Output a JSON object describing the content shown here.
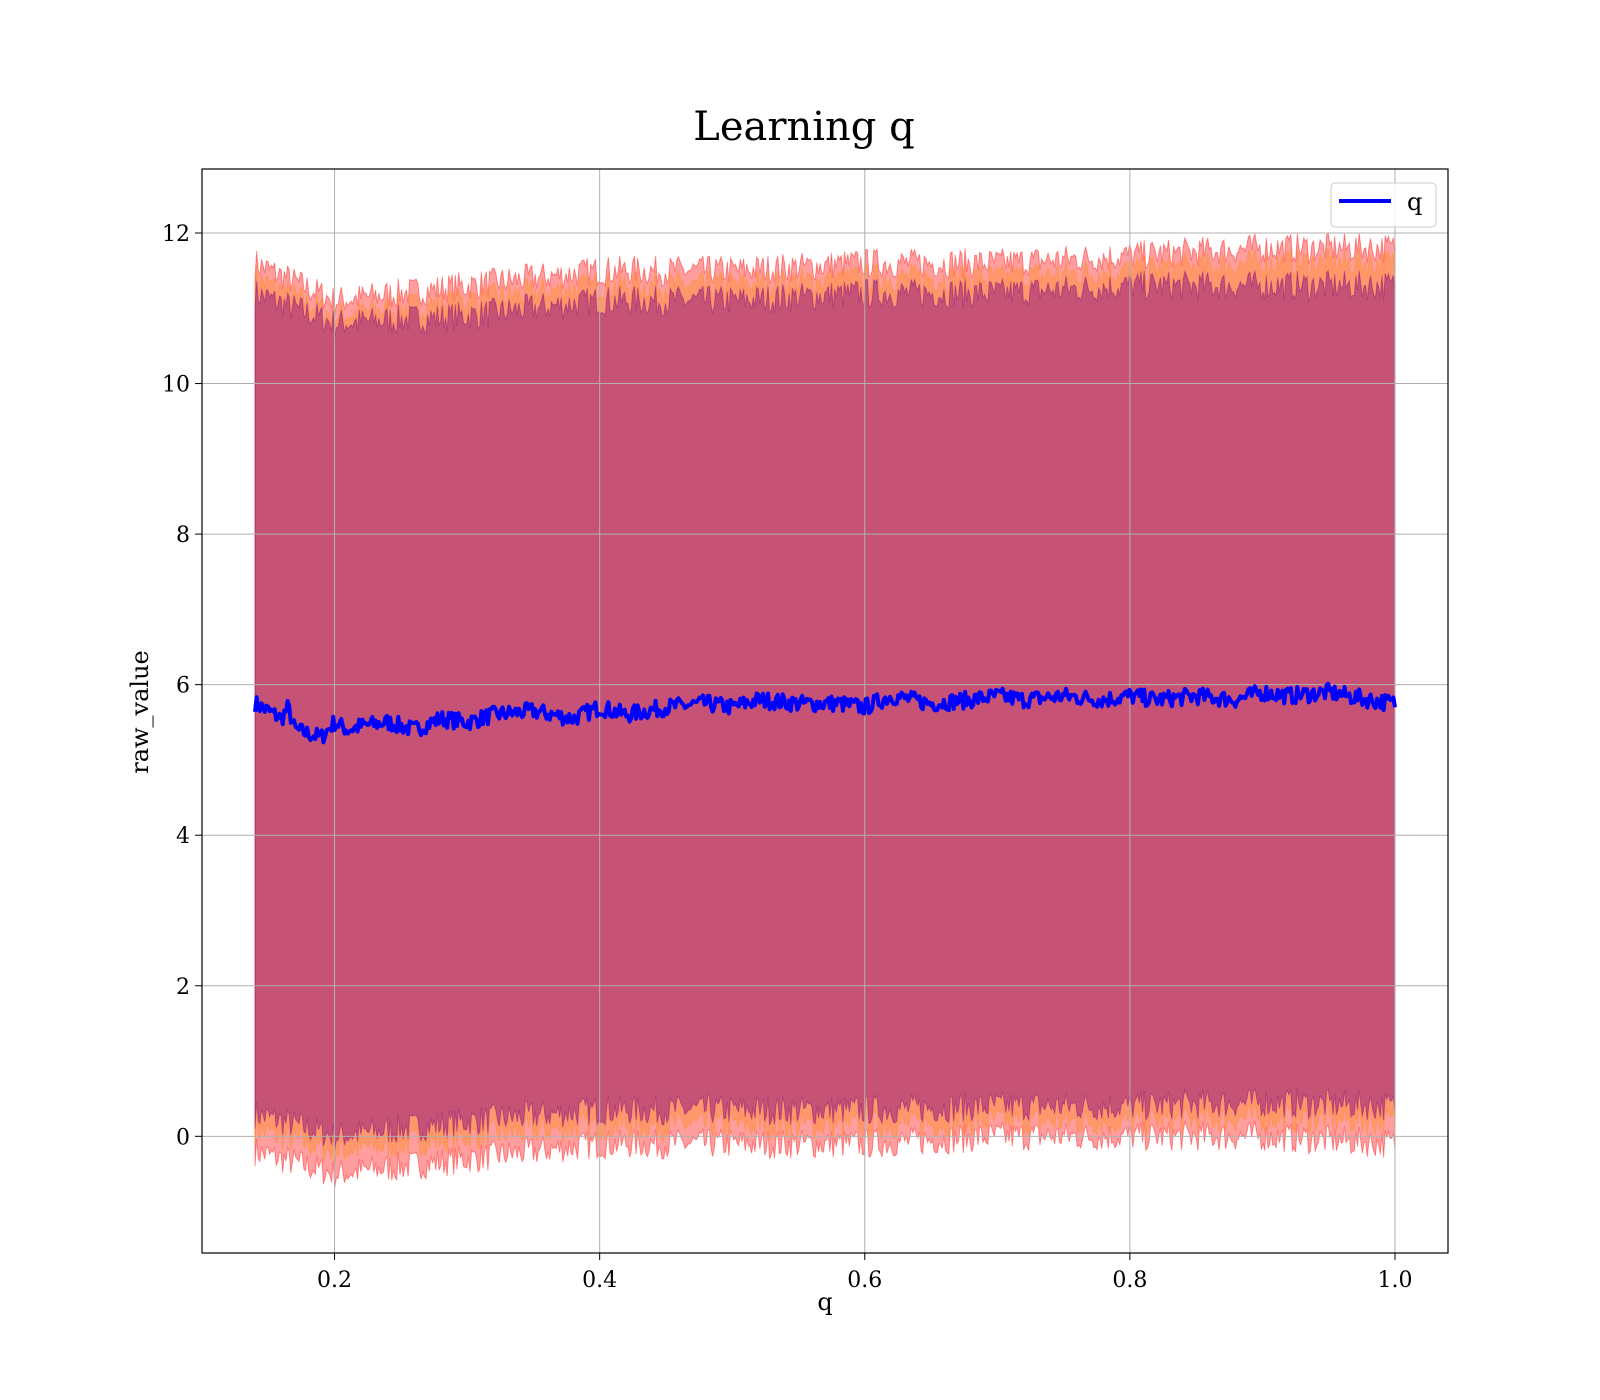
{
  "chart_data": {
    "type": "line",
    "title": "Learning q",
    "xlabel": "q",
    "ylabel": "raw_value",
    "xlim": [
      0.1,
      1.04
    ],
    "ylim": [
      -1.55,
      12.85
    ],
    "x_ticks": [
      0.2,
      0.4,
      0.6,
      0.8,
      1.0
    ],
    "x_tick_labels": [
      "0.2",
      "0.4",
      "0.6",
      "0.8",
      "1.0"
    ],
    "y_ticks": [
      0,
      2,
      4,
      6,
      8,
      10,
      12
    ],
    "y_tick_labels": [
      "0",
      "2",
      "4",
      "6",
      "8",
      "10",
      "12"
    ],
    "grid": true,
    "legend": {
      "position": "top-right",
      "entries": [
        "q"
      ]
    },
    "colors": {
      "line": "#0000ff",
      "band_outer": "#ff0000",
      "band_middle": "#ff8c1a",
      "band_inner": "#800080"
    },
    "x_range": [
      0.14,
      1.0
    ],
    "series": [
      {
        "name": "q",
        "style": "line",
        "x": [
          0.14,
          0.15,
          0.16,
          0.165,
          0.17,
          0.18,
          0.19,
          0.2,
          0.21,
          0.22,
          0.24,
          0.26,
          0.28,
          0.3,
          0.32,
          0.35,
          0.38,
          0.4,
          0.42,
          0.45,
          0.48,
          0.5,
          0.52,
          0.55,
          0.58,
          0.6,
          0.62,
          0.65,
          0.68,
          0.7,
          0.72,
          0.75,
          0.78,
          0.8,
          0.82,
          0.85,
          0.88,
          0.9,
          0.92,
          0.95,
          0.98,
          1.0
        ],
        "y": [
          5.75,
          5.65,
          5.55,
          5.7,
          5.4,
          5.35,
          5.3,
          5.5,
          5.4,
          5.45,
          5.5,
          5.4,
          5.55,
          5.5,
          5.6,
          5.65,
          5.55,
          5.7,
          5.6,
          5.7,
          5.75,
          5.7,
          5.8,
          5.75,
          5.75,
          5.7,
          5.85,
          5.75,
          5.8,
          5.85,
          5.8,
          5.85,
          5.8,
          5.85,
          5.8,
          5.85,
          5.8,
          5.9,
          5.85,
          5.9,
          5.8,
          5.75
        ]
      },
      {
        "name": "",
        "style": "band",
        "x": [
          0.14,
          0.2,
          0.3,
          0.4,
          0.5,
          0.6,
          0.7,
          0.8,
          0.9,
          1.0
        ],
        "upper": [
          11.6,
          11.1,
          11.3,
          11.5,
          11.5,
          11.6,
          11.6,
          11.7,
          11.8,
          11.8
        ],
        "lower": [
          -0.2,
          -0.5,
          -0.3,
          -0.1,
          -0.1,
          -0.1,
          0.0,
          0.0,
          0.0,
          -0.1
        ]
      },
      {
        "name": "",
        "style": "band",
        "x": [
          0.14,
          0.2,
          0.3,
          0.4,
          0.5,
          0.6,
          0.7,
          0.8,
          0.9,
          1.0
        ],
        "upper": [
          11.4,
          10.9,
          11.1,
          11.3,
          11.3,
          11.4,
          11.4,
          11.5,
          11.6,
          11.6
        ],
        "lower": [
          0.1,
          -0.2,
          0.0,
          0.15,
          0.15,
          0.15,
          0.2,
          0.2,
          0.25,
          0.2
        ]
      },
      {
        "name": "",
        "style": "band",
        "x": [
          0.14,
          0.2,
          0.3,
          0.4,
          0.5,
          0.6,
          0.7,
          0.8,
          0.9,
          1.0
        ],
        "upper": [
          11.2,
          10.8,
          10.9,
          11.1,
          11.1,
          11.2,
          11.2,
          11.3,
          11.3,
          11.3
        ],
        "lower": [
          0.3,
          0.0,
          0.2,
          0.35,
          0.35,
          0.35,
          0.4,
          0.4,
          0.45,
          0.4
        ]
      }
    ]
  }
}
